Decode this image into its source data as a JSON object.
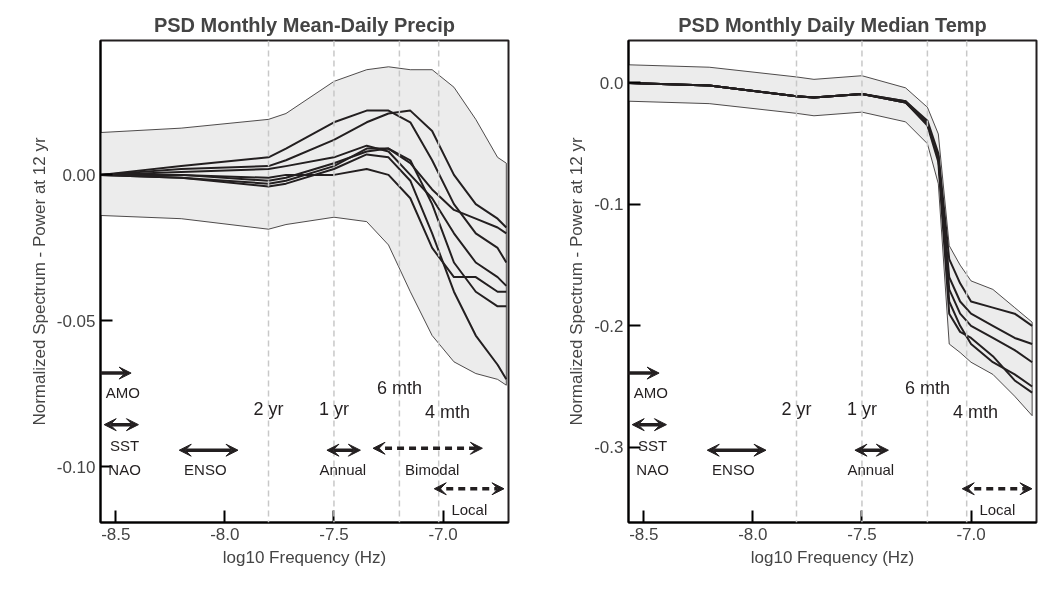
{
  "chart_data": [
    {
      "type": "line",
      "title": "PSD Monthly Mean-Daily Precip",
      "xlabel": "log10 Frequency (Hz)",
      "ylabel": "Normalized Spectrum - Power at 12 yr",
      "x": [
        -8.57,
        -8.2,
        -7.8,
        -7.72,
        -7.5,
        -7.35,
        -7.25,
        -7.15,
        -7.05,
        -6.95,
        -6.85,
        -6.75,
        -6.71
      ],
      "series": [
        {
          "color": "#231f20",
          "values": [
            0,
            0.003,
            0.006,
            0.009,
            0.018,
            0.022,
            0.022,
            0.018,
            0.005,
            -0.01,
            -0.02,
            -0.025,
            -0.03
          ],
          "lower": [
            -0.0139,
            -0.015,
            -0.0186,
            -0.017,
            -0.0145,
            -0.016,
            -0.024,
            -0.04,
            -0.055,
            -0.064,
            -0.068,
            -0.07,
            -0.072
          ],
          "upper": [
            0.0145,
            0.016,
            0.019,
            0.021,
            0.032,
            0.036,
            0.037,
            0.036,
            0.036,
            0.03,
            0.019,
            0.006,
            0.004
          ]
        },
        {
          "color": "#231f20",
          "values": [
            0,
            0.002,
            0.003,
            0.005,
            0.012,
            0.018,
            0.021,
            0.022,
            0.015,
            0.0,
            -0.01,
            -0.015,
            -0.018
          ]
        },
        {
          "color": "#231f20",
          "values": [
            0,
            0,
            -0.002,
            -0.001,
            0.004,
            0.008,
            0.009,
            0.005,
            -0.01,
            -0.03,
            -0.04,
            -0.045,
            -0.045
          ]
        },
        {
          "color": "#231f20",
          "values": [
            0,
            -0.001,
            -0.004,
            -0.003,
            0.002,
            0.007,
            0.006,
            -0.002,
            -0.02,
            -0.04,
            -0.055,
            -0.065,
            -0.07
          ]
        },
        {
          "color": "#231f20",
          "values": [
            0,
            -0.001,
            -0.003,
            -0.002,
            0.003,
            0.009,
            0.009,
            0.004,
            -0.005,
            -0.012,
            -0.015,
            -0.018,
            -0.02
          ]
        },
        {
          "color": "#231f20",
          "values": [
            0,
            0,
            -0.001,
            0.0,
            0.0,
            0.002,
            0.0,
            -0.008,
            -0.025,
            -0.035,
            -0.035,
            -0.04,
            -0.04
          ]
        },
        {
          "color": "#231f20",
          "values": [
            0,
            0.001,
            0.002,
            0.003,
            0.006,
            0.01,
            0.008,
            0.0,
            -0.008,
            -0.02,
            -0.03,
            -0.035,
            -0.038
          ]
        }
      ],
      "xlim": [
        -8.57,
        -6.7
      ],
      "ylim": [
        -0.119,
        0.046
      ],
      "xticks": [
        {
          "value": -8.5,
          "label": "-8.5"
        },
        {
          "value": -8,
          "label": "-8.0"
        },
        {
          "value": -7.5,
          "label": "-7.5"
        },
        {
          "value": -7,
          "label": "-7.0"
        }
      ],
      "yticks": [
        {
          "value": -0.1,
          "label": "-0.10"
        },
        {
          "value": -0.05,
          "label": "-0.05"
        },
        {
          "value": 0,
          "label": "0.00"
        }
      ],
      "ref_lines": [
        {
          "axis": "x",
          "value": -7.8,
          "label": "2 yr",
          "color": "#c8c8c8",
          "line_style": "dashed"
        },
        {
          "axis": "x",
          "value": -7.5,
          "label": "1 yr",
          "color": "#c8c8c8",
          "line_style": "dashed"
        },
        {
          "axis": "x",
          "value": -7.2,
          "label": "6 mth",
          "color": "#c8c8c8",
          "line_style": "dashed"
        },
        {
          "axis": "x",
          "value": -7.02,
          "label": "4 mth",
          "color": "#c8c8c8",
          "line_style": "dashed"
        }
      ],
      "annotations": [
        "AMO",
        "SST",
        "NAO",
        "ENSO",
        "Annual",
        "Bimodal",
        "Local"
      ]
    },
    {
      "type": "line",
      "title": "PSD Monthly Daily Median Temp",
      "xlabel": "log10 Frequency (Hz)",
      "ylabel": "Normalized Spectrum - Power at 12 yr",
      "x": [
        -8.57,
        -8.2,
        -7.8,
        -7.72,
        -7.5,
        -7.3,
        -7.2,
        -7.15,
        -7.1,
        -7.05,
        -7.0,
        -6.9,
        -6.8,
        -6.72
      ],
      "series": [
        {
          "color": "#231f20",
          "values": [
            0,
            -0.002,
            -0.011,
            -0.012,
            -0.009,
            -0.016,
            -0.033,
            -0.06,
            -0.17,
            -0.19,
            -0.2,
            -0.21,
            -0.22,
            -0.23
          ],
          "lower": [
            -0.015,
            -0.017,
            -0.025,
            -0.027,
            -0.024,
            -0.032,
            -0.05,
            -0.083,
            -0.215,
            -0.222,
            -0.23,
            -0.24,
            -0.258,
            -0.274
          ],
          "upper": [
            0.015,
            0.013,
            0.005,
            0.003,
            0.006,
            -0.004,
            -0.02,
            -0.042,
            -0.134,
            -0.15,
            -0.163,
            -0.17,
            -0.185,
            -0.197
          ]
        },
        {
          "color": "#231f20",
          "values": [
            0,
            -0.002,
            -0.011,
            -0.012,
            -0.009,
            -0.015,
            -0.031,
            -0.058,
            -0.145,
            -0.165,
            -0.18,
            -0.185,
            -0.19,
            -0.2
          ]
        },
        {
          "color": "#231f20",
          "values": [
            0,
            -0.002,
            -0.011,
            -0.012,
            -0.009,
            -0.016,
            -0.034,
            -0.062,
            -0.16,
            -0.18,
            -0.19,
            -0.2,
            -0.21,
            -0.215
          ]
        },
        {
          "color": "#231f20",
          "values": [
            0,
            -0.002,
            -0.011,
            -0.012,
            -0.009,
            -0.016,
            -0.035,
            -0.065,
            -0.19,
            -0.205,
            -0.21,
            -0.225,
            -0.245,
            -0.255
          ]
        },
        {
          "color": "#231f20",
          "values": [
            0,
            -0.002,
            -0.011,
            -0.012,
            -0.009,
            -0.015,
            -0.033,
            -0.061,
            -0.18,
            -0.2,
            -0.215,
            -0.23,
            -0.24,
            -0.25
          ]
        }
      ],
      "xlim": [
        -8.57,
        -6.7
      ],
      "ylim": [
        -0.362,
        0.035
      ],
      "xticks": [
        {
          "value": -8.5,
          "label": "-8.5"
        },
        {
          "value": -8,
          "label": "-8.0"
        },
        {
          "value": -7.5,
          "label": "-7.5"
        },
        {
          "value": -7,
          "label": "-7.0"
        }
      ],
      "yticks": [
        -0.3,
        -0.2,
        -0.1,
        {
          "value": 0,
          "label": "0.0"
        }
      ],
      "ref_lines": [
        {
          "axis": "x",
          "value": -7.8,
          "label": "2 yr",
          "color": "#c8c8c8",
          "line_style": "dashed"
        },
        {
          "axis": "x",
          "value": -7.5,
          "label": "1 yr",
          "color": "#c8c8c8",
          "line_style": "dashed"
        },
        {
          "axis": "x",
          "value": -7.2,
          "label": "6 mth",
          "color": "#c8c8c8",
          "line_style": "dashed"
        },
        {
          "axis": "x",
          "value": -7.02,
          "label": "4 mth",
          "color": "#c8c8c8",
          "line_style": "dashed"
        }
      ],
      "annotations": [
        "AMO",
        "SST",
        "NAO",
        "ENSO",
        "Annual",
        "Local"
      ]
    }
  ]
}
